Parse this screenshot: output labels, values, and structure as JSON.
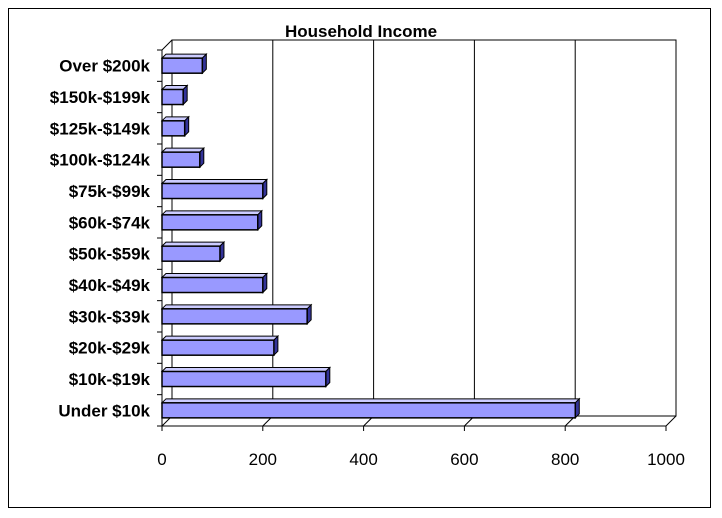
{
  "chart_data": {
    "type": "bar",
    "orientation": "horizontal",
    "title": "Household Income",
    "xlabel": "",
    "ylabel": "",
    "categories": [
      "Under $10k",
      "$10k-$19k",
      "$20k-$29k",
      "$30k-$39k",
      "$40k-$49k",
      "$50k-$59k",
      "$60k-$74k",
      "$75k-$99k",
      "$100k-$124k",
      "$125k-$149k",
      "$150k-$199k",
      "Over $200k"
    ],
    "values": [
      820,
      325,
      222,
      288,
      200,
      115,
      190,
      200,
      75,
      45,
      42,
      80
    ],
    "xlim": [
      0,
      1000
    ],
    "xticks": [
      "0",
      "200",
      "400",
      "600",
      "800",
      "1000"
    ],
    "grid": true,
    "legend": "none",
    "colors": {
      "bar_fill": "#9999ff",
      "bar_top": "#ccccff",
      "bar_side": "#333399",
      "outline": "#000000",
      "gridline": "#000000"
    }
  }
}
